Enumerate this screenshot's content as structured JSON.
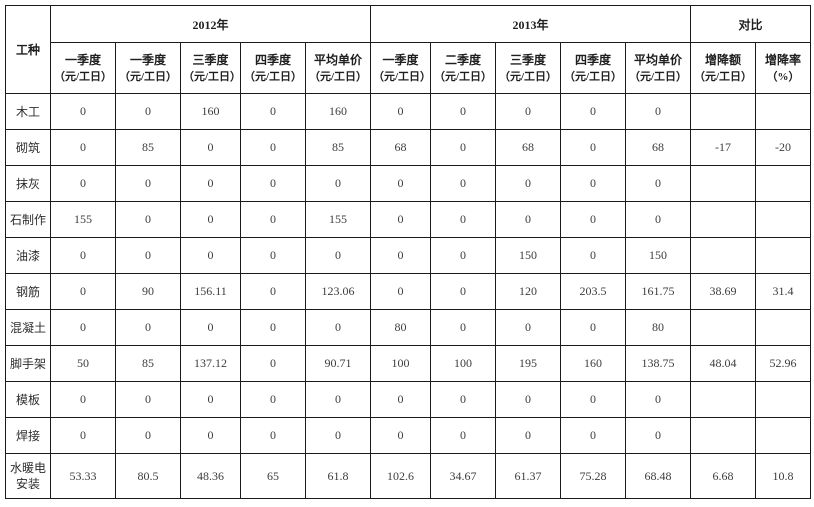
{
  "table": {
    "corner": "工种",
    "year_groups": [
      {
        "label": "2012年"
      },
      {
        "label": "2013年"
      },
      {
        "label": "对比"
      }
    ],
    "columns": [
      {
        "title": "一季度",
        "unit": "（元/工日）"
      },
      {
        "title": "一季度",
        "unit": "（元/工日）"
      },
      {
        "title": "三季度",
        "unit": "（元/工日）"
      },
      {
        "title": "四季度",
        "unit": "（元/工日）"
      },
      {
        "title": "平均单价",
        "unit": "（元/工日）"
      },
      {
        "title": "一季度",
        "unit": "（元/工日）"
      },
      {
        "title": "二季度",
        "unit": "（元/工日）"
      },
      {
        "title": "三季度",
        "unit": "（元/工日）"
      },
      {
        "title": "四季度",
        "unit": "（元/工日）"
      },
      {
        "title": "平均单价",
        "unit": "（元/工日）"
      },
      {
        "title": "增降额",
        "unit": "（元/工日）"
      },
      {
        "title": "增降率",
        "unit": "（%）"
      }
    ],
    "rows": [
      {
        "label": "木工",
        "cells": [
          "0",
          "0",
          "160",
          "0",
          "160",
          "0",
          "0",
          "0",
          "0",
          "0",
          "",
          ""
        ]
      },
      {
        "label": "砌筑",
        "cells": [
          "0",
          "85",
          "0",
          "0",
          "85",
          "68",
          "0",
          "68",
          "0",
          "68",
          "-17",
          "-20"
        ]
      },
      {
        "label": "抹灰",
        "cells": [
          "0",
          "0",
          "0",
          "0",
          "0",
          "0",
          "0",
          "0",
          "0",
          "0",
          "",
          ""
        ]
      },
      {
        "label": "石制作",
        "cells": [
          "155",
          "0",
          "0",
          "0",
          "155",
          "0",
          "0",
          "0",
          "0",
          "0",
          "",
          ""
        ]
      },
      {
        "label": "油漆",
        "cells": [
          "0",
          "0",
          "0",
          "0",
          "0",
          "0",
          "0",
          "150",
          "0",
          "150",
          "",
          ""
        ]
      },
      {
        "label": "钢筋",
        "cells": [
          "0",
          "90",
          "156.11",
          "0",
          "123.06",
          "0",
          "0",
          "120",
          "203.5",
          "161.75",
          "38.69",
          "31.4"
        ]
      },
      {
        "label": "混凝土",
        "cells": [
          "0",
          "0",
          "0",
          "0",
          "0",
          "80",
          "0",
          "0",
          "0",
          "80",
          "",
          ""
        ]
      },
      {
        "label": "脚手架",
        "cells": [
          "50",
          "85",
          "137.12",
          "0",
          "90.71",
          "100",
          "100",
          "195",
          "160",
          "138.75",
          "48.04",
          "52.96"
        ]
      },
      {
        "label": "模板",
        "cells": [
          "0",
          "0",
          "0",
          "0",
          "0",
          "0",
          "0",
          "0",
          "0",
          "0",
          "",
          ""
        ]
      },
      {
        "label": "焊接",
        "cells": [
          "0",
          "0",
          "0",
          "0",
          "0",
          "0",
          "0",
          "0",
          "0",
          "0",
          "",
          ""
        ]
      },
      {
        "label": "水暖电安装",
        "cells": [
          "53.33",
          "80.5",
          "48.36",
          "65",
          "61.8",
          "102.6",
          "34.67",
          "61.37",
          "75.28",
          "68.48",
          "6.68",
          "10.8"
        ]
      }
    ]
  }
}
